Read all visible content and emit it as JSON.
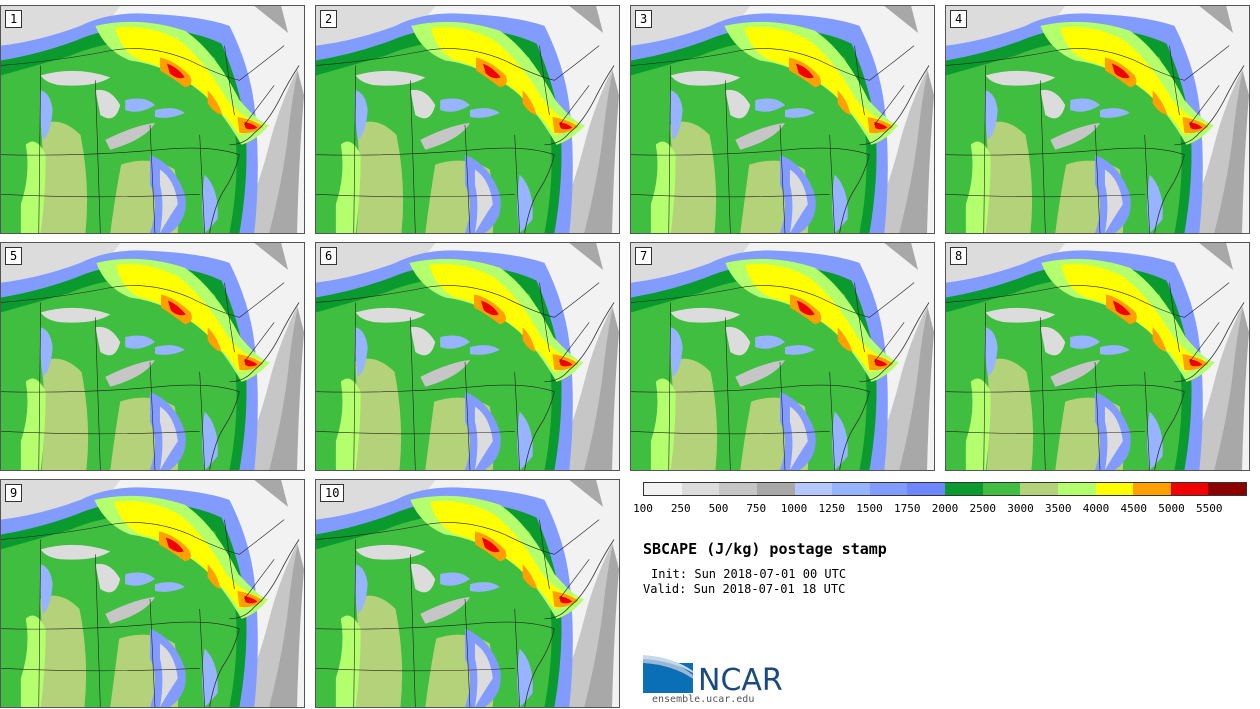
{
  "panels": [
    {
      "label": "1"
    },
    {
      "label": "2"
    },
    {
      "label": "3"
    },
    {
      "label": "4"
    },
    {
      "label": "5"
    },
    {
      "label": "6"
    },
    {
      "label": "7"
    },
    {
      "label": "8"
    },
    {
      "label": "9"
    },
    {
      "label": "10"
    }
  ],
  "colorbar": {
    "colors": [
      "#f2f2f2",
      "#dcdcdc",
      "#c6c6c6",
      "#a8a8a8",
      "#b4c8ff",
      "#96b4ff",
      "#829bff",
      "#6e87ff",
      "#0a9a2d",
      "#3fbe3f",
      "#b4d27a",
      "#b4ff6e",
      "#ffff00",
      "#ffa000",
      "#f00000",
      "#8c0000"
    ],
    "labels": [
      "100",
      "250",
      "500",
      "750",
      "1000",
      "1250",
      "1500",
      "1750",
      "2000",
      "2500",
      "3000",
      "3500",
      "4000",
      "4500",
      "5000",
      "5500"
    ]
  },
  "title": "SBCAPE (J/kg) postage stamp",
  "init": "Init: Sun 2018-07-01 00 UTC",
  "valid": "Valid: Sun 2018-07-01 18 UTC",
  "logo": {
    "text": "NCAR",
    "url": "ensemble.ucar.edu"
  }
}
